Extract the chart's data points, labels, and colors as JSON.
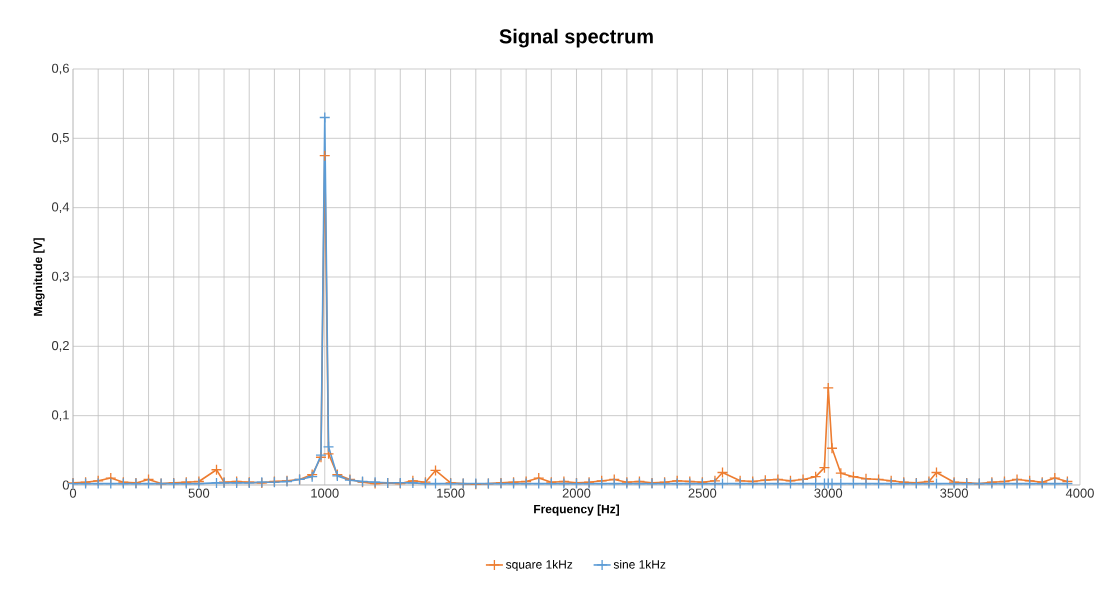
{
  "chart_data": {
    "type": "line",
    "title": "Signal spectrum",
    "xlabel": "Frequency [Hz]",
    "ylabel": "Magnitude [V]",
    "x": [
      0,
      50,
      100,
      150,
      200,
      250,
      300,
      350,
      400,
      450,
      500,
      570,
      600,
      650,
      700,
      750,
      800,
      850,
      900,
      950,
      985,
      1000,
      1015,
      1050,
      1100,
      1150,
      1200,
      1250,
      1300,
      1350,
      1400,
      1440,
      1500,
      1550,
      1600,
      1650,
      1700,
      1750,
      1800,
      1850,
      1900,
      1950,
      2000,
      2050,
      2100,
      2150,
      2200,
      2250,
      2300,
      2350,
      2400,
      2450,
      2500,
      2550,
      2580,
      2650,
      2700,
      2750,
      2800,
      2850,
      2900,
      2950,
      2985,
      3000,
      3015,
      3050,
      3100,
      3150,
      3200,
      3250,
      3300,
      3350,
      3400,
      3430,
      3500,
      3550,
      3600,
      3650,
      3700,
      3750,
      3800,
      3850,
      3900,
      3950
    ],
    "series": [
      {
        "name": "square 1kHz",
        "color": "#ed7d31",
        "values": [
          0.003,
          0.004,
          0.006,
          0.01,
          0.004,
          0.003,
          0.008,
          0.002,
          0.003,
          0.004,
          0.005,
          0.022,
          0.004,
          0.005,
          0.004,
          0.003,
          0.005,
          0.006,
          0.008,
          0.015,
          0.04,
          0.475,
          0.045,
          0.015,
          0.008,
          0.004,
          0.002,
          0.003,
          0.002,
          0.006,
          0.004,
          0.021,
          0.003,
          0.002,
          0.001,
          0.002,
          0.003,
          0.004,
          0.005,
          0.01,
          0.004,
          0.005,
          0.003,
          0.004,
          0.006,
          0.008,
          0.004,
          0.005,
          0.003,
          0.004,
          0.006,
          0.005,
          0.004,
          0.006,
          0.018,
          0.006,
          0.005,
          0.007,
          0.008,
          0.006,
          0.008,
          0.012,
          0.025,
          0.14,
          0.053,
          0.017,
          0.012,
          0.009,
          0.008,
          0.006,
          0.004,
          0.003,
          0.005,
          0.018,
          0.004,
          0.003,
          0.002,
          0.004,
          0.005,
          0.008,
          0.006,
          0.004,
          0.01,
          0.005
        ]
      },
      {
        "name": "sine 1kHz",
        "color": "#5b9bd5",
        "values": [
          0.002,
          0.002,
          0.002,
          0.002,
          0.002,
          0.002,
          0.002,
          0.002,
          0.002,
          0.002,
          0.002,
          0.003,
          0.003,
          0.003,
          0.003,
          0.004,
          0.004,
          0.005,
          0.008,
          0.012,
          0.043,
          0.53,
          0.055,
          0.013,
          0.007,
          0.005,
          0.004,
          0.003,
          0.003,
          0.003,
          0.002,
          0.002,
          0.002,
          0.002,
          0.002,
          0.002,
          0.002,
          0.002,
          0.002,
          0.002,
          0.002,
          0.002,
          0.002,
          0.002,
          0.002,
          0.002,
          0.002,
          0.002,
          0.002,
          0.002,
          0.002,
          0.002,
          0.002,
          0.002,
          0.002,
          0.002,
          0.002,
          0.002,
          0.002,
          0.002,
          0.002,
          0.002,
          0.002,
          0.002,
          0.002,
          0.002,
          0.002,
          0.002,
          0.002,
          0.002,
          0.002,
          0.002,
          0.002,
          0.002,
          0.002,
          0.002,
          0.002,
          0.002,
          0.002,
          0.002,
          0.002,
          0.002,
          0.002,
          0.002
        ]
      }
    ],
    "xlim": [
      0,
      4000
    ],
    "xticks": [
      0,
      {
        "value": 100,
        "label": null
      },
      {
        "value": 200,
        "label": null
      },
      {
        "value": 300,
        "label": null
      },
      {
        "value": 400,
        "label": null
      },
      500,
      {
        "value": 600,
        "label": null
      },
      {
        "value": 700,
        "label": null
      },
      {
        "value": 800,
        "label": null
      },
      {
        "value": 900,
        "label": null
      },
      1000,
      {
        "value": 1100,
        "label": null
      },
      {
        "value": 1200,
        "label": null
      },
      {
        "value": 1300,
        "label": null
      },
      {
        "value": 1400,
        "label": null
      },
      1500,
      {
        "value": 1600,
        "label": null
      },
      {
        "value": 1700,
        "label": null
      },
      {
        "value": 1800,
        "label": null
      },
      {
        "value": 1900,
        "label": null
      },
      2000,
      {
        "value": 2100,
        "label": null
      },
      {
        "value": 2200,
        "label": null
      },
      {
        "value": 2300,
        "label": null
      },
      {
        "value": 2400,
        "label": null
      },
      2500,
      {
        "value": 2600,
        "label": null
      },
      {
        "value": 2700,
        "label": null
      },
      {
        "value": 2800,
        "label": null
      },
      {
        "value": 2900,
        "label": null
      },
      3000,
      {
        "value": 3100,
        "label": null
      },
      {
        "value": 3200,
        "label": null
      },
      {
        "value": 3300,
        "label": null
      },
      {
        "value": 3400,
        "label": null
      },
      3500,
      {
        "value": 3600,
        "label": null
      },
      {
        "value": 3700,
        "label": null
      },
      {
        "value": 3800,
        "label": null
      },
      {
        "value": 3900,
        "label": null
      },
      4000
    ],
    "ylim": [
      0,
      0.6
    ],
    "yticks": [
      0,
      {
        "value": 0.1,
        "label": "0,1"
      },
      {
        "value": 0.2,
        "label": "0,2"
      },
      {
        "value": 0.3,
        "label": "0,3"
      },
      {
        "value": 0.4,
        "label": "0,4"
      },
      {
        "value": 0.5,
        "label": "0,5"
      },
      {
        "value": 0.6,
        "label": "0,6"
      }
    ],
    "grid": true,
    "legend": "bottom",
    "marker": "cross",
    "line_style": "solid"
  }
}
